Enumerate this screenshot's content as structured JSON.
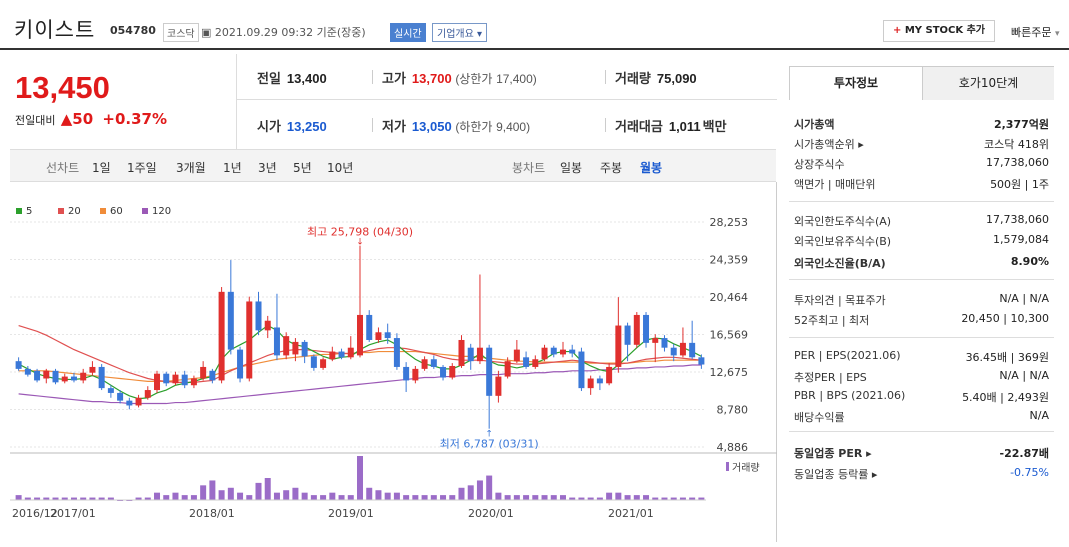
{
  "header": {
    "title": "키이스트",
    "code": "054780",
    "market": "코스닥",
    "timestamp": "2021.09.29 09:32",
    "basis": "기준(장중)",
    "realtime": "실시간",
    "corp_info": "기업개요",
    "my_stock": "MY STOCK 추가",
    "quick_order": "빠른주문"
  },
  "price": {
    "current": "13,450",
    "change_label": "전일대비",
    "change": "▲50",
    "change_pct": "+0.37%"
  },
  "quotes": {
    "prev_label": "전일",
    "prev": "13,400",
    "high_label": "고가",
    "high": "13,700",
    "upper_label": "(상한가",
    "upper": "17,400)",
    "vol_label": "거래량",
    "vol": "75,090",
    "open_label": "시가",
    "open": "13,250",
    "low_label": "저가",
    "low": "13,050",
    "lower_label": "(하한가",
    "lower": "9,400)",
    "amt_label": "거래대금",
    "amt": "1,011",
    "amt_unit": "백만"
  },
  "toolbar": {
    "line_label": "선차트",
    "periods": [
      "1일",
      "1주일",
      "3개월",
      "1년",
      "3년",
      "5년",
      "10년"
    ],
    "candle_label": "봉차트",
    "candles": [
      "일봉",
      "주봉",
      "월봉"
    ]
  },
  "sidebar": {
    "tab_active": "투자정보",
    "tab_other": "호가10단계",
    "rows": [
      {
        "k": "시가총액",
        "v": "2,377억원"
      },
      {
        "k": "시가총액순위 ▸",
        "v": "코스닥 418위"
      },
      {
        "k": "상장주식수",
        "v": "17,738,060"
      },
      {
        "k": "액면가 | 매매단위",
        "v": "500원 | 1주"
      },
      {
        "k": "외국인한도주식수(A)",
        "v": "17,738,060"
      },
      {
        "k": "외국인보유주식수(B)",
        "v": "1,579,084"
      },
      {
        "k": "외국인소진율(B/A)",
        "v": "8.90%"
      },
      {
        "k": "투자의견 | 목표주가",
        "v": "N/A | N/A"
      },
      {
        "k": "52주최고 | 최저",
        "v": "20,450 | 10,300"
      },
      {
        "k": "PER | EPS(2021.06)",
        "v": "36.45배 | 369원"
      },
      {
        "k": "추정PER | EPS",
        "v": "N/A | N/A"
      },
      {
        "k": "PBR | BPS (2021.06)",
        "v": "5.40배 | 2,493원"
      },
      {
        "k": "배당수익률",
        "v": "N/A"
      },
      {
        "k": "동일업종 PER ▸",
        "v": "-22.87배"
      },
      {
        "k": "동일업종 등락률 ▸",
        "v": "-0.75%"
      }
    ]
  },
  "chart_data": {
    "type": "candlestick",
    "title": "",
    "legend": [
      "5",
      "20",
      "60",
      "120"
    ],
    "legend_colors": [
      "#2ca02c",
      "#e05050",
      "#f08c3a",
      "#9b59b6"
    ],
    "y_ticks": [
      28253,
      24359,
      20464,
      16569,
      12675,
      8780,
      4886
    ],
    "x_ticks": [
      "2016/12",
      "2017/01",
      "2018/01",
      "2019/01",
      "2020/01",
      "2021/01"
    ],
    "max_annotation": "최고 25,798 (04/30)",
    "min_annotation": "최저 6,787 (03/31)",
    "volume_label": "거래량",
    "candles": [
      {
        "o": 13800,
        "c": 13000,
        "h": 14200,
        "l": 12800
      },
      {
        "o": 13000,
        "c": 12400,
        "h": 13300,
        "l": 12200
      },
      {
        "o": 12800,
        "c": 11800,
        "h": 13000,
        "l": 11600
      },
      {
        "o": 12000,
        "c": 12800,
        "h": 13000,
        "l": 11500
      },
      {
        "o": 12800,
        "c": 11600,
        "h": 13000,
        "l": 11400
      },
      {
        "o": 11700,
        "c": 12200,
        "h": 12500,
        "l": 11500
      },
      {
        "o": 12200,
        "c": 11800,
        "h": 12600,
        "l": 11600
      },
      {
        "o": 11800,
        "c": 12600,
        "h": 13000,
        "l": 11500
      },
      {
        "o": 12600,
        "c": 13200,
        "h": 13800,
        "l": 12300
      },
      {
        "o": 13200,
        "c": 11000,
        "h": 13500,
        "l": 10800
      },
      {
        "o": 11000,
        "c": 10500,
        "h": 11300,
        "l": 10000
      },
      {
        "o": 10500,
        "c": 9700,
        "h": 10800,
        "l": 9400
      },
      {
        "o": 9700,
        "c": 9200,
        "h": 10000,
        "l": 8800
      },
      {
        "o": 9200,
        "c": 10000,
        "h": 10300,
        "l": 9000
      },
      {
        "o": 10000,
        "c": 10800,
        "h": 11200,
        "l": 9800
      },
      {
        "o": 10800,
        "c": 12500,
        "h": 12800,
        "l": 10500
      },
      {
        "o": 12500,
        "c": 11500,
        "h": 12700,
        "l": 11200
      },
      {
        "o": 11500,
        "c": 12400,
        "h": 12700,
        "l": 11300
      },
      {
        "o": 12400,
        "c": 11300,
        "h": 12800,
        "l": 11000
      },
      {
        "o": 11300,
        "c": 12000,
        "h": 12300,
        "l": 11000
      },
      {
        "o": 12000,
        "c": 13200,
        "h": 13800,
        "l": 11800
      },
      {
        "o": 12800,
        "c": 11800,
        "h": 13000,
        "l": 11500
      },
      {
        "o": 11800,
        "c": 21000,
        "h": 21500,
        "l": 11500
      },
      {
        "o": 21000,
        "c": 15000,
        "h": 24300,
        "l": 14500
      },
      {
        "o": 15000,
        "c": 12000,
        "h": 15300,
        "l": 11600
      },
      {
        "o": 12000,
        "c": 20000,
        "h": 20500,
        "l": 11700
      },
      {
        "o": 20000,
        "c": 17000,
        "h": 21000,
        "l": 16500
      },
      {
        "o": 17000,
        "c": 18000,
        "h": 18500,
        "l": 16200
      },
      {
        "o": 17300,
        "c": 14400,
        "h": 20800,
        "l": 13900
      },
      {
        "o": 14400,
        "c": 16400,
        "h": 16800,
        "l": 14000
      },
      {
        "o": 14500,
        "c": 15800,
        "h": 16200,
        "l": 13800
      },
      {
        "o": 15800,
        "c": 14300,
        "h": 16000,
        "l": 13600
      },
      {
        "o": 14300,
        "c": 13100,
        "h": 14500,
        "l": 12800
      },
      {
        "o": 13100,
        "c": 14000,
        "h": 14200,
        "l": 12900
      },
      {
        "o": 14000,
        "c": 14800,
        "h": 15300,
        "l": 13800
      },
      {
        "o": 14800,
        "c": 14200,
        "h": 15100,
        "l": 14000
      },
      {
        "o": 14200,
        "c": 15200,
        "h": 16400,
        "l": 14000
      },
      {
        "o": 14400,
        "c": 18600,
        "h": 25798,
        "l": 14200
      },
      {
        "o": 18600,
        "c": 16000,
        "h": 19100,
        "l": 15800
      },
      {
        "o": 16000,
        "c": 16800,
        "h": 17300,
        "l": 15700
      },
      {
        "o": 16800,
        "c": 16200,
        "h": 17700,
        "l": 15600
      },
      {
        "o": 16200,
        "c": 13200,
        "h": 16700,
        "l": 12900
      },
      {
        "o": 13200,
        "c": 11800,
        "h": 13700,
        "l": 10600
      },
      {
        "o": 11800,
        "c": 13000,
        "h": 13300,
        "l": 11500
      },
      {
        "o": 13000,
        "c": 14000,
        "h": 14300,
        "l": 12800
      },
      {
        "o": 14000,
        "c": 13200,
        "h": 14400,
        "l": 13000
      },
      {
        "o": 13200,
        "c": 12100,
        "h": 13400,
        "l": 11800
      },
      {
        "o": 12100,
        "c": 13300,
        "h": 13600,
        "l": 11900
      },
      {
        "o": 13300,
        "c": 16000,
        "h": 16500,
        "l": 13100
      },
      {
        "o": 15200,
        "c": 13800,
        "h": 15600,
        "l": 12900
      },
      {
        "o": 13800,
        "c": 15200,
        "h": 22800,
        "l": 13500
      },
      {
        "o": 15200,
        "c": 10200,
        "h": 15500,
        "l": 6787
      },
      {
        "o": 10200,
        "c": 12200,
        "h": 12800,
        "l": 9500
      },
      {
        "o": 12200,
        "c": 13800,
        "h": 14200,
        "l": 12000
      },
      {
        "o": 13800,
        "c": 15000,
        "h": 16000,
        "l": 13600
      },
      {
        "o": 14200,
        "c": 13200,
        "h": 14800,
        "l": 13000
      },
      {
        "o": 13200,
        "c": 14000,
        "h": 14400,
        "l": 13000
      },
      {
        "o": 14000,
        "c": 15200,
        "h": 15500,
        "l": 13800
      },
      {
        "o": 15200,
        "c": 14500,
        "h": 15400,
        "l": 14200
      },
      {
        "o": 14500,
        "c": 15000,
        "h": 15800,
        "l": 14200
      },
      {
        "o": 15000,
        "c": 14600,
        "h": 15500,
        "l": 14200
      },
      {
        "o": 14800,
        "c": 11000,
        "h": 15200,
        "l": 10700
      },
      {
        "o": 11000,
        "c": 12000,
        "h": 12300,
        "l": 10300
      },
      {
        "o": 12000,
        "c": 11500,
        "h": 12300,
        "l": 10800
      },
      {
        "o": 11500,
        "c": 13200,
        "h": 13600,
        "l": 11300
      },
      {
        "o": 13200,
        "c": 17500,
        "h": 20450,
        "l": 12600
      },
      {
        "o": 17500,
        "c": 15500,
        "h": 17800,
        "l": 13800
      },
      {
        "o": 15500,
        "c": 18600,
        "h": 18900,
        "l": 15200
      },
      {
        "o": 18600,
        "c": 15700,
        "h": 18900,
        "l": 15200
      },
      {
        "o": 15700,
        "c": 16200,
        "h": 16600,
        "l": 13700
      },
      {
        "o": 16200,
        "c": 15200,
        "h": 16500,
        "l": 14800
      },
      {
        "o": 15200,
        "c": 14400,
        "h": 15600,
        "l": 13800
      },
      {
        "o": 14400,
        "c": 15700,
        "h": 17300,
        "l": 14200
      },
      {
        "o": 15700,
        "c": 14200,
        "h": 18000,
        "l": 14000
      },
      {
        "o": 14200,
        "c": 13450,
        "h": 14500,
        "l": 13000
      }
    ],
    "volumes": [
      2,
      1,
      1,
      1,
      1,
      1,
      1,
      1,
      1,
      1,
      1,
      0,
      0,
      1,
      1,
      3,
      2,
      3,
      2,
      2,
      6,
      8,
      4,
      5,
      3,
      2,
      7,
      9,
      3,
      4,
      5,
      3,
      2,
      2,
      3,
      2,
      2,
      18,
      5,
      4,
      3,
      3,
      2,
      2,
      2,
      2,
      2,
      2,
      5,
      6,
      8,
      10,
      3,
      2,
      2,
      2,
      2,
      2,
      2,
      2,
      1,
      1,
      1,
      1,
      3,
      3,
      2,
      2,
      2,
      1,
      1,
      1,
      1,
      1,
      1
    ],
    "ma5": [
      13500,
      13000,
      12500,
      12200,
      12000,
      11900,
      11900,
      12000,
      12300,
      11900,
      11300,
      10700,
      10200,
      9900,
      10000,
      10500,
      10800,
      11300,
      11500,
      11700,
      12000,
      12200,
      14000,
      15000,
      15500,
      16000,
      16800,
      17500,
      17000,
      16000,
      15500,
      15300,
      14800,
      14300,
      14000,
      14200,
      14300,
      15000,
      15500,
      15800,
      16000,
      15500,
      14700,
      14000,
      13500,
      13300,
      13000,
      13000,
      13400,
      13900,
      14600,
      13800,
      13400,
      13300,
      13100,
      13300,
      13600,
      14000,
      14600,
      14800,
      14800,
      13800,
      13300,
      12900,
      12700,
      13400,
      14300,
      15200,
      16000,
      16200,
      16100,
      15600,
      15200,
      14800,
      14300
    ],
    "ma20": [
      17500,
      17200,
      16900,
      16500,
      16000,
      15500,
      15000,
      14600,
      14200,
      13800,
      13400,
      13000,
      12600,
      12300,
      12000,
      11800,
      11700,
      11600,
      11600,
      11600,
      11700,
      11800,
      12300,
      12800,
      13200,
      13600,
      14000,
      14400,
      14700,
      14900,
      15000,
      15000,
      14900,
      14800,
      14700,
      14600,
      14600,
      14700,
      14900,
      15100,
      15200,
      15200,
      15100,
      14900,
      14700,
      14500,
      14200,
      14000,
      13900,
      13900,
      13900,
      13800,
      13700,
      13600,
      13500,
      13500,
      13500,
      13600,
      13700,
      13800,
      13900,
      13800,
      13700,
      13600,
      13500,
      13500,
      13600,
      13800,
      14000,
      14100,
      14200,
      14200,
      14100,
      14000,
      13900
    ],
    "ma60": [
      12800,
      12800,
      12800,
      12800,
      12700,
      12600,
      12500,
      12400,
      12300,
      12200,
      12100,
      12000,
      11900,
      11800,
      11700,
      11700,
      11700,
      11800,
      11900,
      12000,
      12100,
      12300,
      12600,
      12900,
      13200,
      13400,
      13600,
      13800,
      14000,
      14100,
      14200,
      14300,
      14400,
      14500,
      14500,
      14600,
      14600,
      14700,
      14700,
      14800,
      14800,
      14800,
      14800,
      14800,
      14700,
      14600,
      14500,
      14400,
      14300,
      14300,
      14200,
      14100,
      14000,
      13900,
      13800,
      13800,
      13700,
      13700,
      13700,
      13700,
      13700,
      13700,
      13600,
      13600,
      13600,
      13600,
      13600,
      13700,
      13800,
      13800,
      13900,
      13900,
      13900,
      13900,
      13900
    ],
    "ma120": [
      10400,
      10300,
      10200,
      10100,
      10000,
      9900,
      9800,
      9700,
      9600,
      9600,
      9500,
      9500,
      9400,
      9400,
      9400,
      9400,
      9400,
      9500,
      9500,
      9600,
      9700,
      9800,
      9900,
      10000,
      10100,
      10200,
      10300,
      10400,
      10500,
      10600,
      10700,
      10800,
      10900,
      11000,
      11100,
      11200,
      11300,
      11400,
      11500,
      11600,
      11700,
      11800,
      11900,
      12000,
      12100,
      12100,
      12200,
      12200,
      12300,
      12300,
      12400,
      12400,
      12400,
      12500,
      12500,
      12500,
      12600,
      12600,
      12700,
      12700,
      12800,
      12800,
      12800,
      12900,
      12900,
      13000,
      13000,
      13100,
      13100,
      13200,
      13200,
      13300,
      13300,
      13400,
      13400
    ]
  }
}
